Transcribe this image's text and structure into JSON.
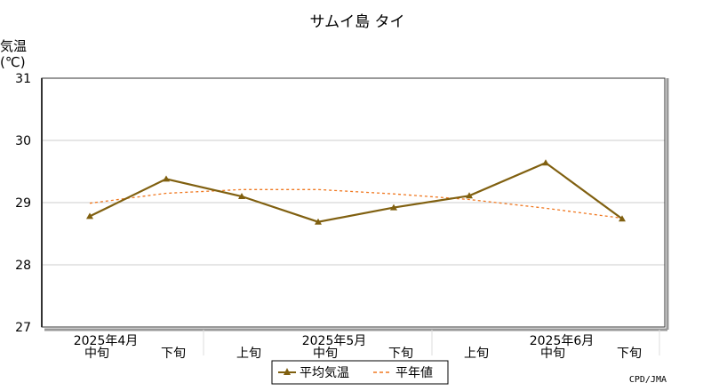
{
  "chart_data": {
    "type": "line",
    "title": "サムイ島 タイ",
    "ylabel_line1": "気温",
    "ylabel_line2": "(℃)",
    "ylim": [
      27,
      31
    ],
    "yticks": [
      "27",
      "28",
      "29",
      "30",
      "31"
    ],
    "grid": true,
    "categories": [
      "中旬",
      "下旬",
      "上旬",
      "中旬",
      "下旬",
      "上旬",
      "中旬",
      "下旬"
    ],
    "month_labels": [
      {
        "label": "2025年4月",
        "index": 0
      },
      {
        "label": "2025年5月",
        "index": 3
      },
      {
        "label": "2025年6月",
        "index": 6
      }
    ],
    "series": [
      {
        "name": "平均気温",
        "values": [
          28.78,
          29.38,
          29.1,
          28.69,
          28.92,
          29.11,
          29.64,
          28.74
        ],
        "color": "#806010",
        "style": "solid",
        "marker": "triangle"
      },
      {
        "name": "平年値",
        "values": [
          28.99,
          29.15,
          29.21,
          29.21,
          29.14,
          29.05,
          28.91,
          28.75
        ],
        "color": "#f07820",
        "style": "dashed"
      }
    ],
    "legend_position": "bottom-center",
    "credit": "CPD/JMA"
  }
}
